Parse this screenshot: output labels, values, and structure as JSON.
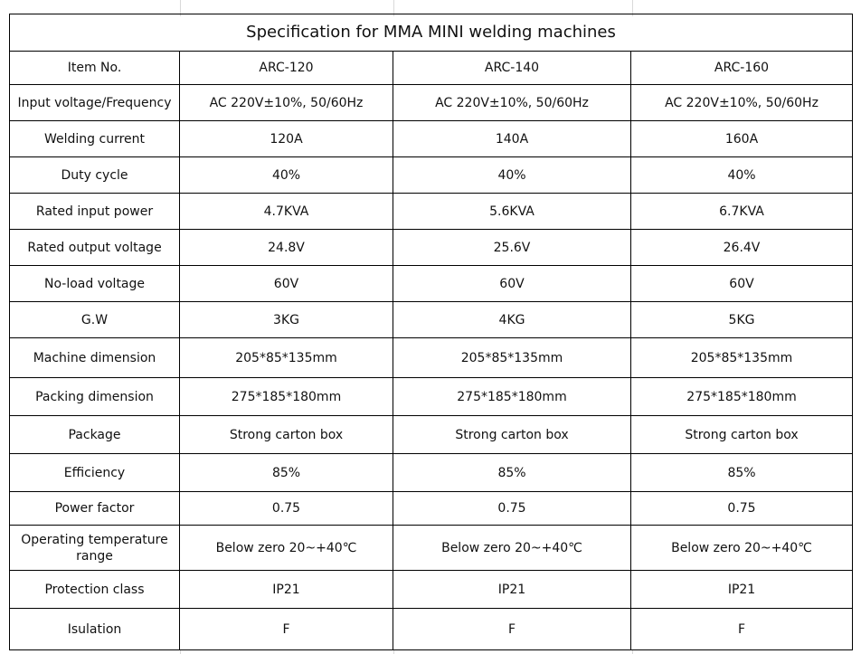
{
  "title": "Specification for MMA MINI welding machines",
  "header": {
    "label": "Item No.",
    "models": [
      "ARC-120",
      "ARC-140",
      "ARC-160"
    ]
  },
  "rows": [
    {
      "label": "Input voltage/Frequency",
      "values": [
        "AC 220V±10%, 50/60Hz",
        "AC 220V±10%, 50/60Hz",
        "AC 220V±10%, 50/60Hz"
      ]
    },
    {
      "label": "Welding current",
      "values": [
        "120A",
        "140A",
        "160A"
      ]
    },
    {
      "label": "Duty cycle",
      "values": [
        "40%",
        "40%",
        "40%"
      ]
    },
    {
      "label": "Rated input power",
      "values": [
        "4.7KVA",
        "5.6KVA",
        "6.7KVA"
      ]
    },
    {
      "label": "Rated output voltage",
      "values": [
        "24.8V",
        "25.6V",
        "26.4V"
      ]
    },
    {
      "label": "No-load voltage",
      "values": [
        "60V",
        "60V",
        "60V"
      ]
    },
    {
      "label": "G.W",
      "values": [
        "3KG",
        "4KG",
        "5KG"
      ]
    },
    {
      "label": "Machine dimension",
      "values": [
        "205*85*135mm",
        "205*85*135mm",
        "205*85*135mm"
      ]
    },
    {
      "label": "Packing dimension",
      "values": [
        "275*185*180mm",
        "275*185*180mm",
        "275*185*180mm"
      ]
    },
    {
      "label": "Package",
      "values": [
        "Strong carton box",
        "Strong carton box",
        "Strong carton box"
      ]
    },
    {
      "label": "Efficiency",
      "values": [
        "85%",
        "85%",
        "85%"
      ]
    },
    {
      "label": "Power factor",
      "values": [
        "0.75",
        "0.75",
        "0.75"
      ]
    },
    {
      "label": "Operating temperature range",
      "values": [
        "Below zero 20~+40℃",
        "Below zero 20~+40℃",
        "Below zero 20~+40℃"
      ]
    },
    {
      "label": "Protection class",
      "values": [
        "IP21",
        "IP21",
        "IP21"
      ]
    },
    {
      "label": "Isulation",
      "values": [
        "F",
        "F",
        "F"
      ]
    }
  ]
}
